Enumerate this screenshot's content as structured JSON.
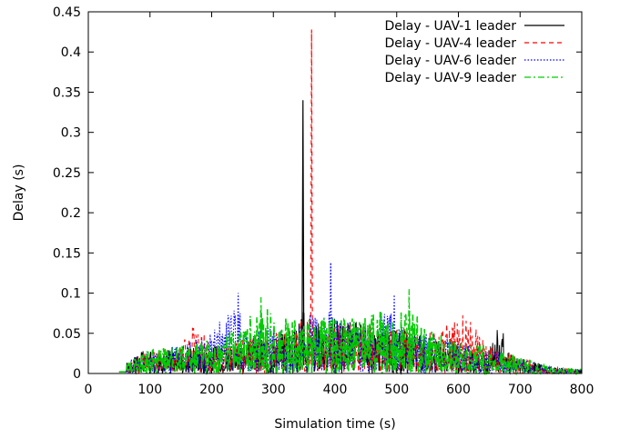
{
  "chart_data": {
    "type": "line",
    "title": "",
    "xlabel": "Simulation time (s)",
    "ylabel": "Delay (s)",
    "xlim": [
      0,
      800
    ],
    "ylim": [
      0,
      0.45
    ],
    "xticks": [
      0,
      100,
      200,
      300,
      400,
      500,
      600,
      700,
      800
    ],
    "xtick_labels": [
      "0",
      "100",
      "200",
      "300",
      "400",
      "500",
      "600",
      "700",
      "800"
    ],
    "yticks": [
      0,
      0.05,
      0.1,
      0.15,
      0.2,
      0.25,
      0.3,
      0.35,
      0.4,
      0.45
    ],
    "ytick_labels": [
      "0",
      "0.05",
      "0.1",
      "0.15",
      "0.2",
      "0.25",
      "0.3",
      "0.35",
      "0.4",
      "0.45"
    ],
    "grid": false,
    "legend_position": "top-right",
    "series": [
      {
        "name": "Delay - UAV-1 leader",
        "color": "#000000",
        "dash": "solid",
        "x": [
          50,
          60,
          70,
          100,
          150,
          200,
          250,
          300,
          340,
          348,
          352,
          360,
          400,
          450,
          500,
          550,
          600,
          650,
          672,
          675,
          700,
          750,
          800
        ],
        "y": [
          0.002,
          0.01,
          0.025,
          0.03,
          0.032,
          0.035,
          0.04,
          0.045,
          0.06,
          0.34,
          0.02,
          0.06,
          0.07,
          0.06,
          0.06,
          0.045,
          0.035,
          0.03,
          0.072,
          0.03,
          0.02,
          0.008,
          0.005
        ]
      },
      {
        "name": "Delay - UAV-4 leader",
        "color": "#ff0000",
        "dash": "dashed",
        "x": [
          50,
          70,
          100,
          150,
          178,
          200,
          250,
          300,
          355,
          362,
          368,
          400,
          450,
          500,
          550,
          613,
          650,
          700,
          750,
          800
        ],
        "y": [
          0.002,
          0.02,
          0.03,
          0.035,
          0.08,
          0.035,
          0.045,
          0.05,
          0.07,
          0.428,
          0.04,
          0.07,
          0.06,
          0.06,
          0.05,
          0.075,
          0.035,
          0.02,
          0.008,
          0.005
        ]
      },
      {
        "name": "Delay - UAV-6 leader",
        "color": "#0000ff",
        "dash": "dotted",
        "x": [
          50,
          70,
          100,
          150,
          200,
          243,
          250,
          300,
          350,
          393,
          400,
          450,
          496,
          500,
          550,
          600,
          650,
          700,
          750,
          800
        ],
        "y": [
          0.002,
          0.02,
          0.03,
          0.035,
          0.05,
          0.1,
          0.05,
          0.06,
          0.06,
          0.138,
          0.07,
          0.06,
          0.098,
          0.06,
          0.05,
          0.04,
          0.03,
          0.02,
          0.008,
          0.005
        ]
      },
      {
        "name": "Delay - UAV-9 leader",
        "color": "#00cc00",
        "dash": "dashdot",
        "x": [
          50,
          70,
          100,
          150,
          200,
          250,
          280,
          300,
          350,
          400,
          450,
          520,
          550,
          600,
          650,
          700,
          750,
          800
        ],
        "y": [
          0.002,
          0.02,
          0.03,
          0.035,
          0.045,
          0.06,
          0.095,
          0.07,
          0.07,
          0.07,
          0.07,
          0.105,
          0.06,
          0.04,
          0.035,
          0.02,
          0.008,
          0.005
        ]
      }
    ]
  }
}
